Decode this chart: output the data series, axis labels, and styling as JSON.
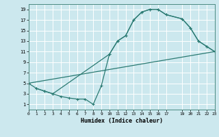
{
  "xlabel": "Humidex (Indice chaleur)",
  "bg_color": "#cce8ee",
  "grid_color": "#ffffff",
  "line_color": "#2a7a72",
  "line1_x": [
    0,
    1,
    2,
    3,
    10,
    11,
    12,
    13,
    14,
    15,
    16,
    17,
    19,
    20,
    21,
    22,
    23
  ],
  "line1_y": [
    5,
    4,
    3.5,
    3,
    10.5,
    13,
    14,
    17,
    18.5,
    19,
    19,
    18,
    17.2,
    15.5,
    13,
    12,
    11
  ],
  "line2_x": [
    0,
    23
  ],
  "line2_y": [
    5,
    11
  ],
  "line3_x": [
    1,
    2,
    3,
    4,
    5,
    6,
    7,
    8,
    9,
    10,
    11,
    12,
    13,
    14,
    15,
    16,
    17,
    19,
    20,
    21,
    22,
    23
  ],
  "line3_y": [
    4,
    3.5,
    3,
    2.5,
    2.2,
    2.0,
    2.0,
    1.0,
    4.5,
    10.5,
    13,
    14,
    17,
    18.5,
    19,
    19,
    18,
    17.2,
    15.5,
    13,
    12,
    11
  ],
  "xlim": [
    0,
    23
  ],
  "ylim": [
    0,
    20
  ],
  "xticks": [
    0,
    1,
    2,
    3,
    4,
    5,
    6,
    7,
    8,
    9,
    10,
    11,
    12,
    13,
    14,
    15,
    16,
    17,
    19,
    20,
    21,
    22,
    23
  ],
  "yticks": [
    1,
    3,
    5,
    7,
    9,
    11,
    13,
    15,
    17,
    19
  ]
}
